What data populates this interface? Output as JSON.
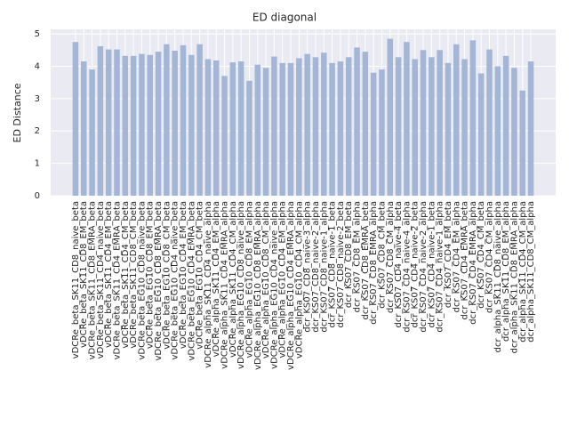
{
  "chart_data": {
    "type": "bar",
    "title": "ED diagonal",
    "y_label": "ED Distance",
    "categories": [
      "vDCRe_beta_SK11_CD8_naive_beta",
      "vDCRe_beta_SK11_CD8_EM_beta",
      "vDCRe_beta_SK11_CD8_EMRA_beta",
      "vDCRe_beta_SK11_CD4_naive_beta",
      "vDCRe_beta_SK11_CD4_EM_beta",
      "vDCRe_beta_SK11_CD4_EMRA_beta",
      "vDCRe_beta_SK11_CD4_CM_beta",
      "vDCRe_beta_SK11_CD8_CM_beta",
      "vDCRe_beta_EG10_CD8_naive_beta",
      "vDCRe_beta_EG10_CD8_EM_beta",
      "vDCRe_beta_EG10_CD8_EMRA_beta",
      "vDCRe_beta_EG10_CD8_CM_beta",
      "vDCRe_beta_EG10_CD4_naive_beta",
      "vDCRe_beta_EG10_CD4_EM_beta",
      "vDCRe_beta_EG10_CD4_EMRA_beta",
      "vDCRe_beta_EG10_CD4_CM_beta",
      "vDCRe_alpha_SK11_CD4_naive_alpha",
      "vDCRe_alpha_SK11_CD4_EM_alpha",
      "vDCRe_alpha_SK11_CD4_EMRA_alpha",
      "vDCRe_alpha_SK11_CD4_CM_alpha",
      "vDCRe_alpha_EG10_CD8_naive_alpha",
      "vDCRe_alpha_EG10_CD8_EM_alpha",
      "vDCRe_alpha_EG10_CD8_EMRA_alpha",
      "vDCRe_alpha_EG10_CD8_CM_alpha",
      "vDCRe_alpha_EG10_CD4_naive_alpha",
      "vDCRe_alpha_EG10_CD4_EM_alpha",
      "vDCRe_alpha_EG10_CD4_EMRA_alpha",
      "vDCRe_alpha_EG10_CD4_CM_alpha",
      "dcr_KS07_CD8_naive-3_alpha",
      "dcr_KS07_CD8_naive-2_alpha",
      "dcr_KS07_CD8_naive-1_alpha",
      "dcr_KS07_CD8_naive-1_beta",
      "dcr_KS07_CD8_naive-2_beta",
      "dcr_KS07_CD8_EM_beta",
      "dcr_KS07_CD8_EM_alpha",
      "dcr_KS07_CD8_EMRA_beta",
      "dcr_KS07_CD8_EMRA_alpha",
      "dcr_KS07_CD8_CM_beta",
      "dcr_KS07_CD8_CM_alpha",
      "dcr_KS07_CD4_naive-4_beta",
      "dcr_KS07_CD4_naive-4_alpha",
      "dcr_KS07_CD4_naive-2_beta",
      "dcr_KS07_CD4_naive-2_alpha",
      "dcr_KS07_CD4_naive-1_beta",
      "dcr_KS07_CD4_naive-1_alpha",
      "dcr_KS07_CD4_EM_beta",
      "dcr_KS07_CD4_EM_alpha",
      "dcr_KS07_CD4_EMRA_beta",
      "dcr_KS07_CD4_EMRA_alpha",
      "dcr_KS07_CD4_CM_beta",
      "dcr_KS07_CD4_CM_alpha",
      "dcr_alpha_SK11_CD8_naive_alpha",
      "dcr_alpha_SK11_CD8_EM_alpha",
      "dcr_alpha_SK11_CD8_EMRA_alpha",
      "dcr_alpha_SK11_CD4_CM_alpha",
      "dcr_alpha_SK11_CD8_CM_alpha"
    ],
    "values": [
      4.75,
      4.15,
      3.9,
      4.62,
      4.52,
      4.52,
      4.32,
      4.32,
      4.38,
      4.35,
      4.45,
      4.68,
      4.48,
      4.65,
      4.35,
      4.68,
      4.22,
      4.18,
      3.7,
      4.12,
      4.15,
      3.55,
      4.05,
      3.95,
      4.3,
      4.1,
      4.1,
      4.25,
      4.38,
      4.28,
      4.42,
      4.1,
      4.15,
      4.28,
      4.58,
      4.45,
      3.8,
      3.9,
      4.85,
      4.28,
      4.75,
      4.22,
      4.5,
      4.28,
      4.5,
      4.1,
      4.68,
      4.22,
      4.8,
      3.78,
      4.52,
      4.0,
      4.32,
      3.95,
      3.25,
      4.15
    ],
    "color": "#a4b6d6",
    "ylim": [
      0,
      5.14
    ],
    "yticks": [
      0,
      1,
      2,
      3,
      4,
      5
    ],
    "grid": true
  }
}
